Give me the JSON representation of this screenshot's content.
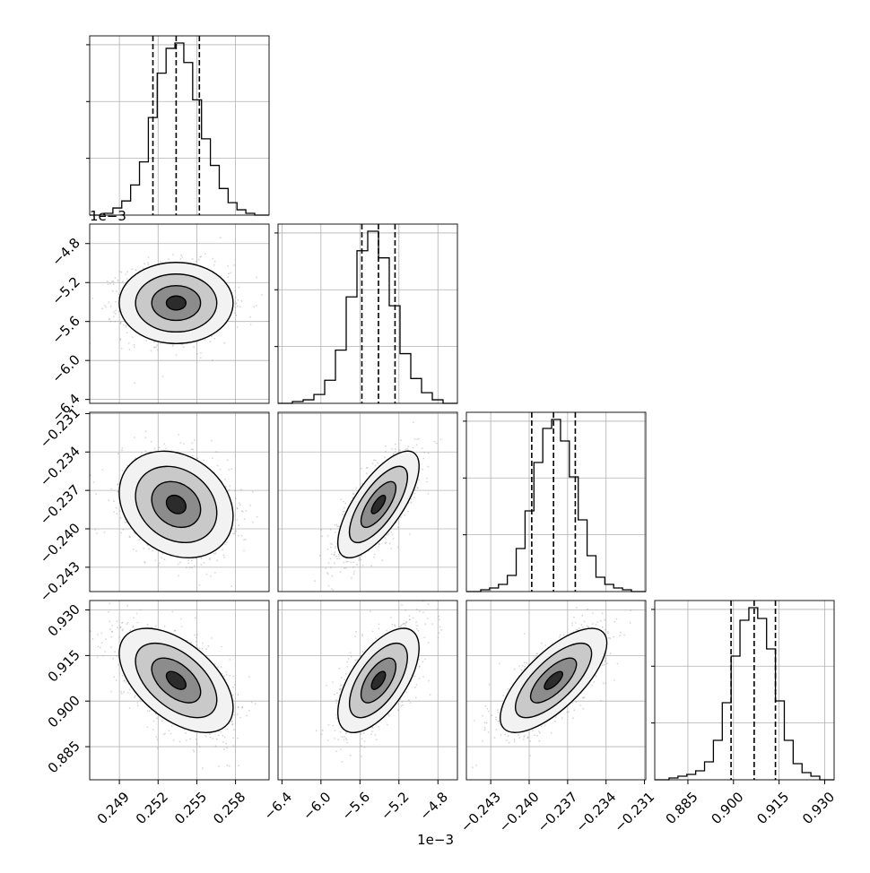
{
  "chart_data": {
    "type": "corner",
    "parameters": [
      {
        "ticks": [
          0.249,
          0.252,
          0.255,
          0.258
        ],
        "tick_labels": [
          "0.249",
          "0.252",
          "0.255",
          "0.258"
        ],
        "range": [
          0.2467,
          0.2606
        ],
        "quantiles": [
          0.2516,
          0.2534,
          0.2552
        ],
        "offset_text": ""
      },
      {
        "ticks": [
          -6.4,
          -6.0,
          -5.6,
          -5.2,
          -4.8
        ],
        "tick_labels": [
          "−6.4",
          "−6.0",
          "−5.6",
          "−5.2",
          "−4.8"
        ],
        "range": [
          -6.44,
          -4.6
        ],
        "quantiles": [
          -5.58,
          -5.41,
          -5.24
        ],
        "offset_text": "1e−3"
      },
      {
        "ticks": [
          -0.243,
          -0.24,
          -0.237,
          -0.234,
          -0.231
        ],
        "tick_labels": [
          "−0.243",
          "−0.240",
          "−0.237",
          "−0.234",
          "−0.231"
        ],
        "range": [
          -0.2449,
          -0.2309
        ],
        "quantiles": [
          -0.2398,
          -0.2381,
          -0.2364
        ],
        "offset_text": ""
      },
      {
        "ticks": [
          0.885,
          0.9,
          0.915,
          0.93
        ],
        "tick_labels": [
          "0.885",
          "0.900",
          "0.915",
          "0.930"
        ],
        "range": [
          0.8741,
          0.9331
        ],
        "quantiles": [
          0.8992,
          0.9068,
          0.9138
        ],
        "offset_text": ""
      }
    ],
    "histograms": [
      {
        "counts": [
          1,
          4,
          8,
          17,
          30,
          55,
          80,
          94,
          97,
          86,
          65,
          43,
          28,
          15,
          7,
          3,
          1
        ]
      },
      {
        "counts": [
          1,
          2,
          5,
          13,
          30,
          60,
          86,
          97,
          82,
          55,
          28,
          14,
          6,
          2
        ]
      },
      {
        "counts": [
          1,
          2,
          4,
          9,
          24,
          45,
          72,
          91,
          96,
          84,
          64,
          40,
          20,
          8,
          4,
          2,
          1
        ]
      },
      {
        "counts": [
          1,
          2,
          3,
          5,
          10,
          22,
          43,
          69,
          89,
          96,
          90,
          73,
          44,
          22,
          9,
          4,
          2
        ]
      }
    ],
    "pairs": [
      {
        "x": 0,
        "y": 1,
        "rho": 0.0
      },
      {
        "x": 0,
        "y": 2,
        "rho": -0.22
      },
      {
        "x": 1,
        "y": 2,
        "rho": 0.72
      },
      {
        "x": 0,
        "y": 3,
        "rho": -0.52
      },
      {
        "x": 1,
        "y": 3,
        "rho": 0.62
      },
      {
        "x": 2,
        "y": 3,
        "rho": 0.72
      }
    ],
    "grid": true,
    "quantile_lines": "dashed",
    "x_offset_label": "1e−3",
    "y_offset_label": "1e−3"
  }
}
